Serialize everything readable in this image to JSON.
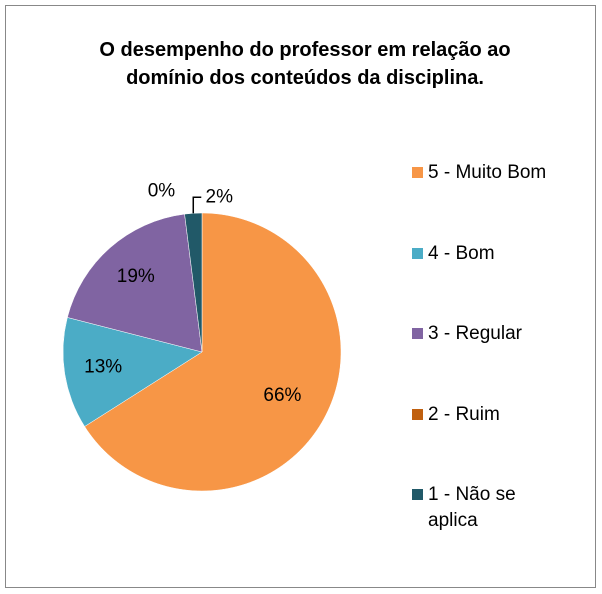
{
  "chart_data": {
    "type": "pie",
    "title": "O desempenho do professor em relação ao domínio dos conteúdos da disciplina.",
    "categories": [
      "5 - Muito Bom",
      "4 - Bom",
      "3 - Regular",
      "2 - Ruim",
      "1 - Não se aplica"
    ],
    "values": [
      66,
      13,
      19,
      0,
      2
    ],
    "value_labels": [
      "66%",
      "13%",
      "19%",
      "0%",
      "2%"
    ],
    "colors": [
      "#f79646",
      "#4bacc6",
      "#8064a2",
      "#c0600f",
      "#215968"
    ],
    "legend": "right"
  }
}
